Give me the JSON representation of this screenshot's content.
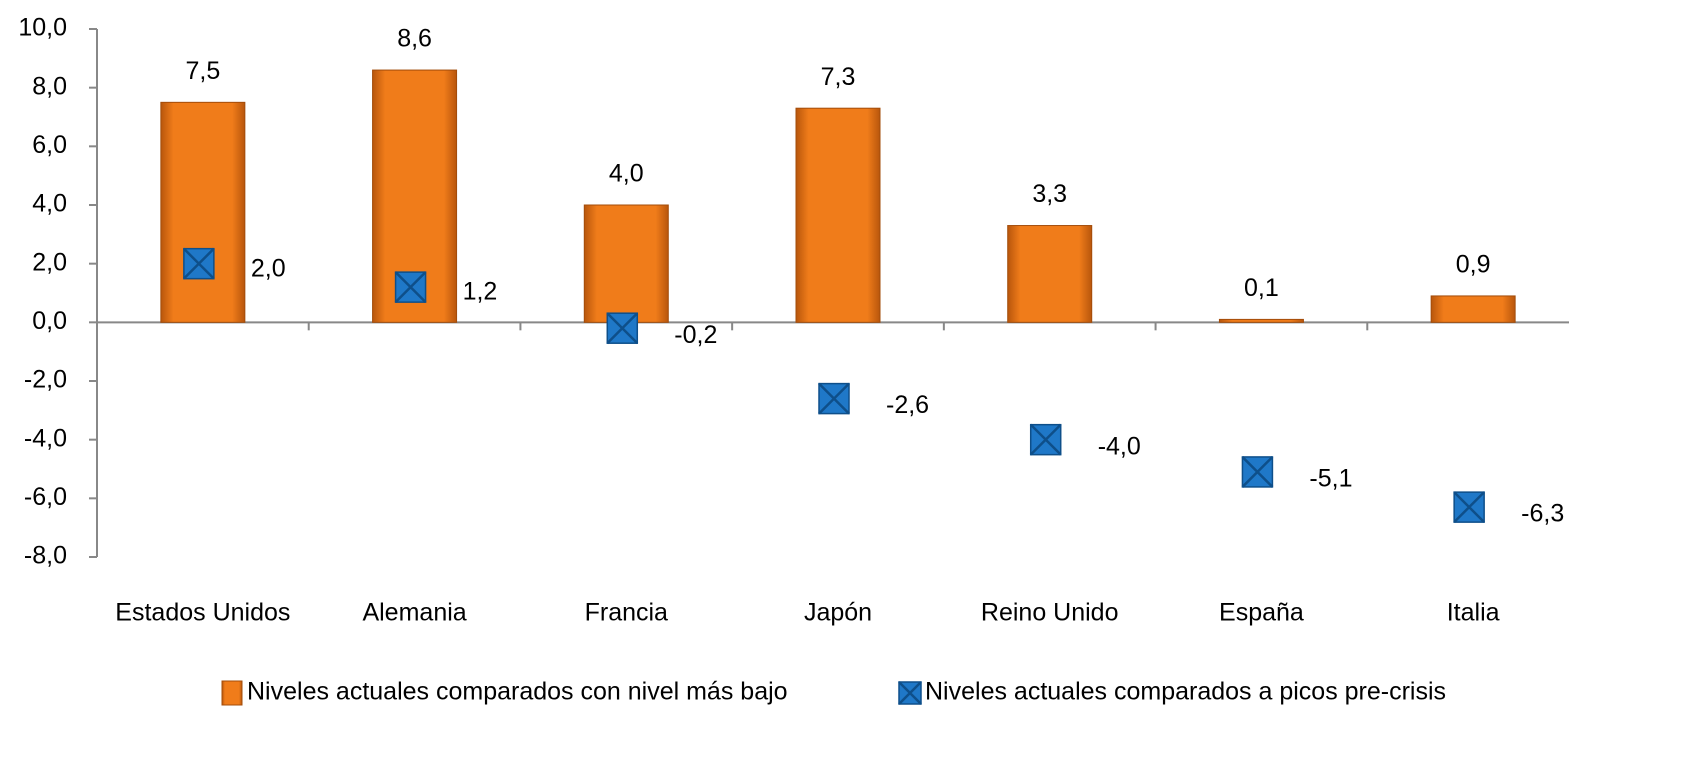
{
  "chart_data": {
    "type": "bar",
    "categories": [
      "Estados Unidos",
      "Alemania",
      "Francia",
      "Japón",
      "Reino Unido",
      "España",
      "Italia"
    ],
    "series": [
      {
        "name": "Niveles actuales comparados con nivel más bajo",
        "type": "bar",
        "color": "#f07c1a",
        "values": [
          7.5,
          8.6,
          4.0,
          7.3,
          3.3,
          0.1,
          0.9
        ],
        "value_labels": [
          "7,5",
          "8,6",
          "4,0",
          "7,3",
          "3,3",
          "0,1",
          "0,9"
        ]
      },
      {
        "name": "Niveles actuales comparados a picos pre-crisis",
        "type": "scatter",
        "color": "#1f78c8",
        "values": [
          2.0,
          1.2,
          -0.2,
          -2.6,
          -4.0,
          -5.1,
          -6.3
        ],
        "value_labels": [
          "2,0",
          "1,2",
          "-0,2",
          "-2,6",
          "-4,0",
          "-5,1",
          "-6,3"
        ]
      }
    ],
    "ylim": [
      -8,
      10
    ],
    "yticks": [
      {
        "value": -8,
        "label": "-8,0"
      },
      {
        "value": -6,
        "label": "-6,0"
      },
      {
        "value": -4,
        "label": "-4,0"
      },
      {
        "value": -2,
        "label": "-2,0"
      },
      {
        "value": 0,
        "label": "0,0"
      },
      {
        "value": 2,
        "label": "2,0"
      },
      {
        "value": 4,
        "label": "4,0"
      },
      {
        "value": 6,
        "label": "6,0"
      },
      {
        "value": 8,
        "label": "8,0"
      },
      {
        "value": 10,
        "label": "10,0"
      }
    ],
    "grid": false,
    "legend": "bottom"
  }
}
